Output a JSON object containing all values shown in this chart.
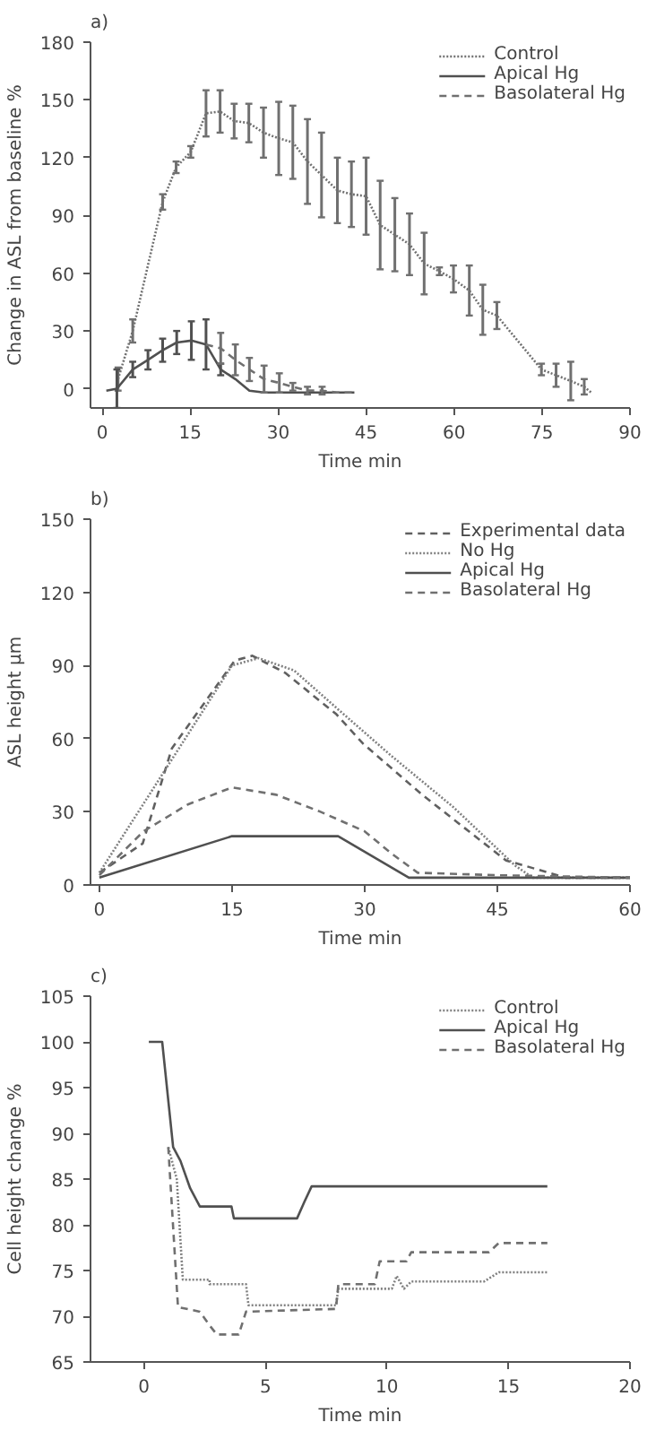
{
  "chart_data": [
    {
      "type": "line",
      "title": "a)",
      "xlabel": "Time min",
      "ylabel": "Change in ASL from baseline %",
      "xlim": [
        -2,
        90
      ],
      "ylim": [
        -10,
        180
      ],
      "xticks": [
        0,
        15,
        30,
        45,
        60,
        75,
        90
      ],
      "yticks": [
        0,
        30,
        60,
        90,
        120,
        150,
        180
      ],
      "grid": false,
      "legend": "top right",
      "series": [
        {
          "name": "Control",
          "color": "#707070",
          "line_style": "dotted",
          "x": [
            2.7,
            5.2,
            10.3,
            12.6,
            15.1,
            17.7,
            20.1,
            22.5,
            25,
            27.5,
            30.1,
            32.5,
            35,
            37.4,
            40.1,
            42.5,
            45,
            47.4,
            49.9,
            52.4,
            54.9,
            57.5,
            59.9,
            62.6,
            64.9,
            67.3,
            74.9,
            77.4,
            79.9,
            82.2,
            83.4
          ],
          "values": [
            5,
            30,
            97,
            115,
            123,
            143,
            144,
            139,
            138,
            133,
            130,
            128,
            118,
            111,
            103,
            101,
            100,
            85,
            80,
            75,
            65,
            61,
            57,
            51,
            41,
            38,
            10,
            7,
            4,
            1,
            -2
          ],
          "errors": [
            6,
            6,
            4,
            3,
            3,
            12,
            11,
            9,
            10,
            13,
            19,
            19,
            22,
            22,
            17,
            17,
            20,
            23,
            19,
            16,
            16,
            2,
            7,
            13,
            13,
            7,
            3,
            6,
            10,
            4,
            null
          ]
        },
        {
          "name": "Apical Hg",
          "color": "#505050",
          "line_style": "solid",
          "x": [
            0.7,
            2.5,
            5.2,
            7.8,
            10.3,
            12.7,
            15.2,
            17.7,
            20.2,
            22.7,
            25.1,
            27.6,
            30.2,
            32.5,
            35,
            37.5,
            40,
            43
          ],
          "values": [
            -1,
            0,
            10,
            15,
            20,
            24,
            25,
            23,
            10,
            5,
            -1,
            -2,
            -2,
            -2,
            -2,
            -2,
            -2,
            -2
          ],
          "errors": [
            null,
            10,
            4,
            5,
            6,
            6,
            10,
            13,
            3,
            null,
            null,
            null,
            null,
            null,
            null,
            null,
            null,
            null
          ]
        },
        {
          "name": "Basolateral Hg",
          "color": "#707070",
          "line_style": "dashed",
          "x": [
            17.7,
            20.2,
            22.7,
            25.1,
            27.6,
            30.2,
            32.5,
            35,
            37.5,
            40,
            43
          ],
          "values": [
            23,
            21,
            15,
            10,
            5,
            3,
            1,
            -1,
            -1,
            -2,
            -2
          ],
          "errors": [
            null,
            8,
            8,
            6,
            7,
            5,
            2,
            2,
            2,
            null,
            null
          ]
        }
      ]
    },
    {
      "type": "line",
      "title": "b)",
      "xlabel": "Time min",
      "ylabel": "ASL height µm",
      "xlim": [
        -1,
        60
      ],
      "ylim": [
        0,
        150
      ],
      "xticks": [
        0,
        15,
        30,
        45,
        60
      ],
      "yticks": [
        0,
        30,
        60,
        90,
        120,
        150
      ],
      "grid": false,
      "legend": "top right",
      "series": [
        {
          "name": "Experimental data",
          "color": "#606060",
          "line_style": "dashed",
          "x": [
            0,
            4.9,
            8.2,
            15.3,
            17.3,
            21,
            26.8,
            29.8,
            36.5,
            46,
            48,
            52.7,
            60
          ],
          "values": [
            5,
            17,
            56,
            92,
            94,
            87,
            70,
            58,
            37,
            10,
            8,
            3,
            3
          ]
        },
        {
          "name": "No Hg",
          "color": "#808080",
          "line_style": "dotted",
          "x": [
            0,
            15,
            18,
            22,
            27,
            33,
            40,
            47,
            49,
            60
          ],
          "values": [
            5,
            90,
            93,
            88,
            72,
            53,
            32,
            8,
            3,
            3
          ]
        },
        {
          "name": "Apical Hg",
          "color": "#505050",
          "line_style": "solid",
          "x": [
            0,
            15,
            27,
            35,
            60
          ],
          "values": [
            3,
            20,
            20,
            3,
            3
          ]
        },
        {
          "name": "Basolateral Hg",
          "color": "#707070",
          "line_style": "dashed",
          "x": [
            0,
            5,
            10,
            15,
            20,
            25,
            30,
            33,
            36,
            45,
            60
          ],
          "values": [
            4,
            22,
            33,
            40,
            37,
            30,
            22,
            13,
            5,
            4,
            3
          ]
        }
      ]
    },
    {
      "type": "line",
      "title": "c)",
      "xlabel": "Time min",
      "ylabel": "Cell height change %",
      "xlim": [
        -2.2,
        20
      ],
      "ylim": [
        65,
        105
      ],
      "xticks": [
        0,
        5,
        10,
        15,
        20
      ],
      "yticks": [
        65,
        70,
        75,
        80,
        85,
        90,
        95,
        100,
        105
      ],
      "grid": false,
      "legend": "top right",
      "series": [
        {
          "name": "Control",
          "color": "#808080",
          "line_style": "dotted",
          "x": [
            1.0,
            1.35,
            1.6,
            2.7,
            2.7,
            4.2,
            4.3,
            7.9,
            8.0,
            10.2,
            10.4,
            10.7,
            11,
            14,
            14.6,
            16.6
          ],
          "values": [
            88.5,
            85,
            74,
            74,
            73.5,
            73.5,
            71.2,
            71.2,
            73,
            73,
            74.4,
            73,
            73.8,
            73.8,
            74.8,
            74.8
          ]
        },
        {
          "name": "Apical Hg",
          "color": "#505050",
          "line_style": "solid",
          "x": [
            0.2,
            0.75,
            1.2,
            1.5,
            1.9,
            2.3,
            3.6,
            3.7,
            6.3,
            6.6,
            6.9,
            16.6
          ],
          "values": [
            100,
            100,
            88.5,
            87,
            84,
            82,
            82,
            80.7,
            80.7,
            82.5,
            84.2,
            84.2
          ]
        },
        {
          "name": "Basolateral Hg",
          "color": "#707070",
          "line_style": "dashed",
          "x": [
            1.0,
            1.4,
            2.3,
            2.7,
            3.0,
            3.9,
            4.2,
            7.9,
            8.0,
            9.5,
            9.7,
            10.8,
            11.0,
            14.2,
            14.6,
            16.6
          ],
          "values": [
            88.5,
            71,
            70.5,
            69,
            68,
            68,
            70.5,
            70.8,
            73.5,
            73.5,
            76,
            76,
            77,
            77,
            78,
            78
          ]
        }
      ]
    }
  ]
}
